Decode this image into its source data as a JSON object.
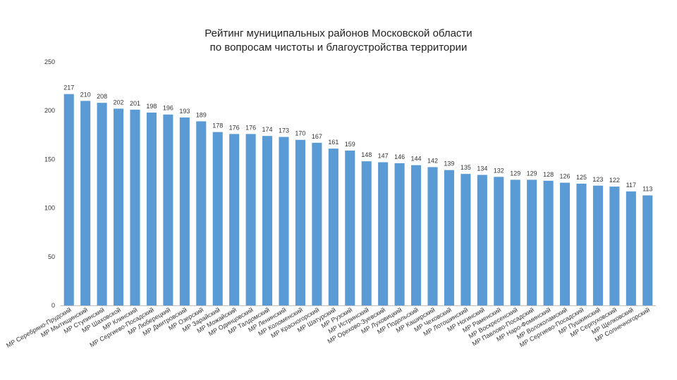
{
  "chart_data": {
    "type": "bar",
    "title_lines": [
      "Рейтинг муниципальных районов Московской области",
      "по вопросам чистоты и благоустройства территории"
    ],
    "xlabel": "",
    "ylabel": "",
    "ylim": [
      0,
      250
    ],
    "yticks": [
      "0",
      "50",
      "100",
      "150",
      "200",
      "250"
    ],
    "grid": false,
    "legend": "none",
    "bar_color": "#5b9bd5",
    "categories": [
      "МР Серебряно-Прудский",
      "МР Мытищинский",
      "МР Ступинский",
      "МР Шаховской",
      "МР Клинский",
      "МР Сергиево-Посадский",
      "МР Люберецкий",
      "МР Дмитровский",
      "МР Озерский",
      "МР Зарайский",
      "МР Можайский",
      "МР Одинцовский",
      "МР Талдомский",
      "МР Ленинский",
      "МР Коломенский",
      "МР Красногорский",
      "МР Шатурский",
      "МР Рузский",
      "МР Истринский",
      "МР Орехово-Зуевский",
      "МР Луховицкий",
      "МР Подольский",
      "МР Каширский",
      "МР Чеховский",
      "МР Лотошинский",
      "МР Ногинский",
      "МР Раменский",
      "МР Воскресенский",
      "МР Павлово-Посадский",
      "МР Наро-Фоминский",
      "МР Волоколамский",
      "МР Сергиево-Посадский",
      "МР Пушкинский",
      "МР Серпуховский",
      "МР Щелковский",
      "МР Солнечногорский"
    ],
    "values": [
      217,
      210,
      208,
      202,
      201,
      198,
      196,
      193,
      189,
      178,
      176,
      176,
      174,
      173,
      170,
      167,
      161,
      159,
      148,
      147,
      146,
      144,
      142,
      139,
      135,
      134,
      132,
      129,
      129,
      128,
      126,
      125,
      123,
      122,
      117,
      113
    ],
    "value_labels": [
      "217",
      "210",
      "208",
      "202",
      "201",
      "198",
      "196",
      "193",
      "189",
      "178",
      "176",
      "176",
      "174",
      "173",
      "170",
      "167",
      "161",
      "159",
      "148",
      "147",
      "146",
      "144",
      "142",
      "139",
      "135",
      "134",
      "132",
      "129",
      "129",
      "128",
      "126",
      "125",
      "123",
      "122",
      "117",
      "113"
    ]
  }
}
